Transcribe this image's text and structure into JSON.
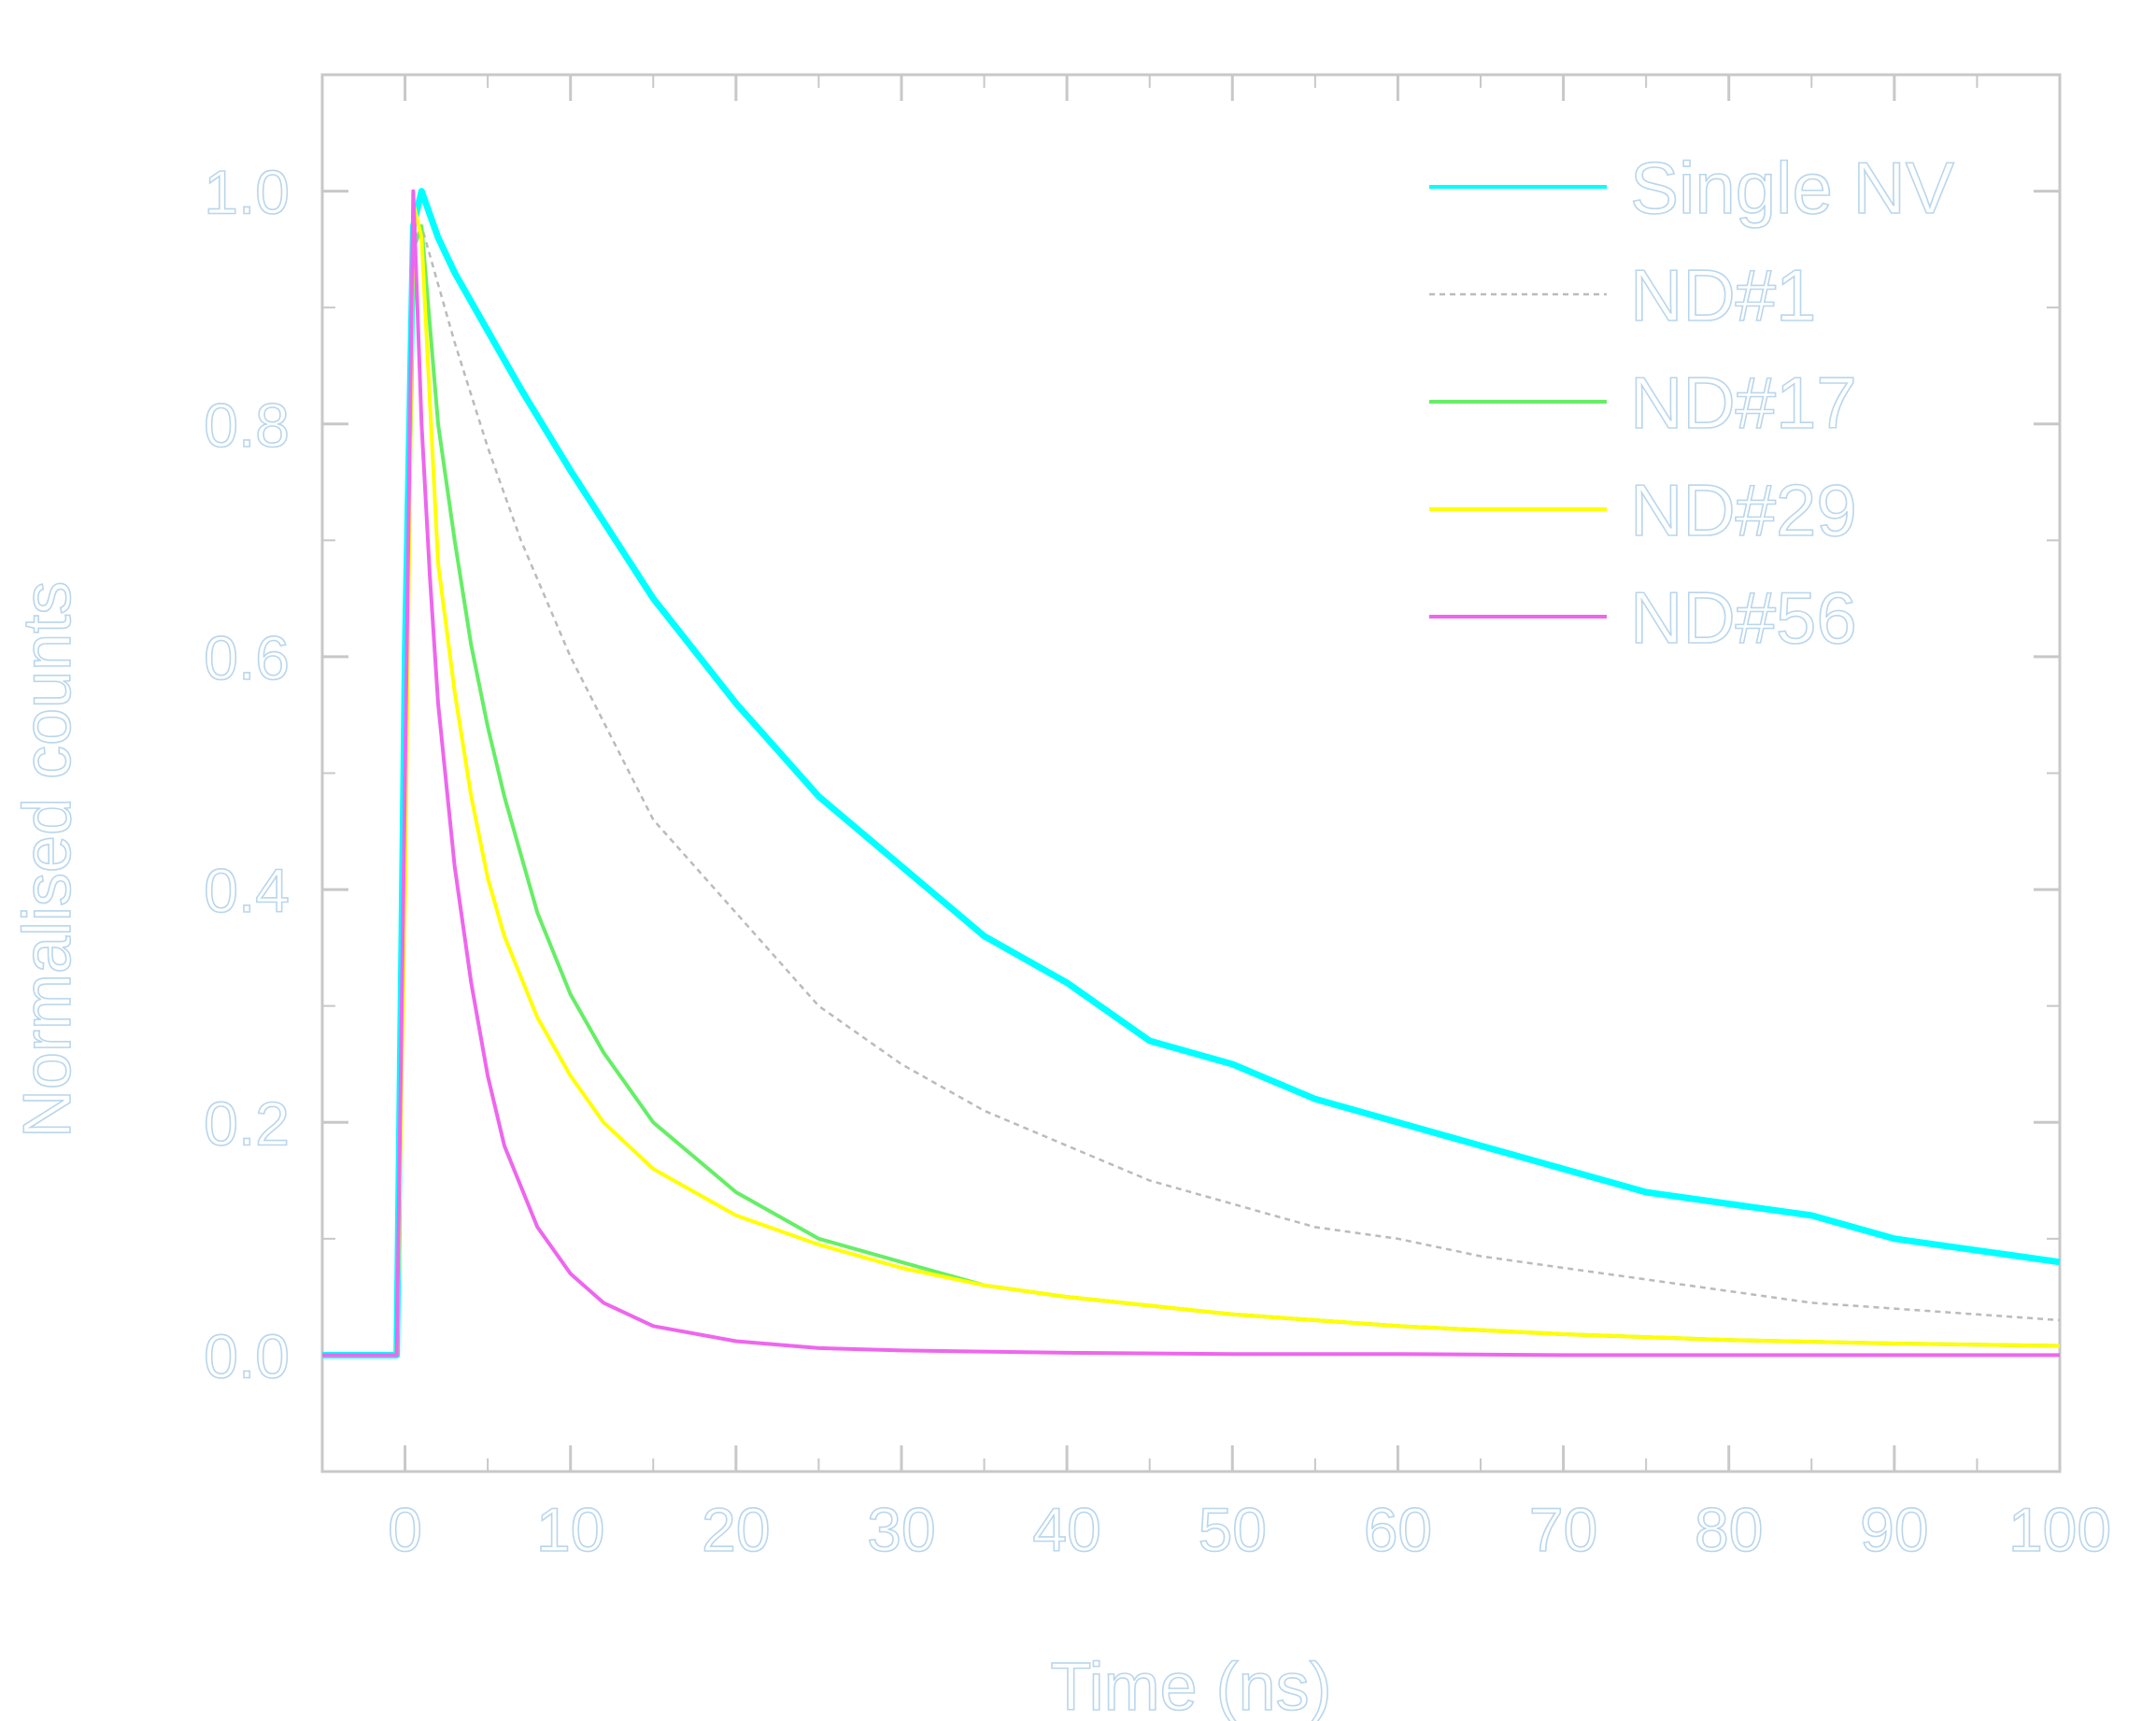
{
  "chart_data": {
    "type": "line",
    "title": "",
    "xlabel": "Time (ns)",
    "ylabel": "Normalised counts",
    "xlim": [
      -5,
      100
    ],
    "ylim": [
      -0.1,
      1.1
    ],
    "xticks": [
      0,
      10,
      20,
      30,
      40,
      50,
      60,
      70,
      80,
      90,
      100
    ],
    "xtick_labels": [
      "0",
      "10",
      "20",
      "30",
      "40",
      "50",
      "60",
      "70",
      "80",
      "90",
      "100"
    ],
    "yticks": [
      0.0,
      0.2,
      0.4,
      0.6,
      0.8,
      1.0
    ],
    "ytick_labels": [
      "0.0",
      "0.2",
      "0.4",
      "0.6",
      "0.8",
      "1.0"
    ],
    "grid": false,
    "legend_position": "top-right",
    "series": [
      {
        "name": "Single NV",
        "color": "#00ffff",
        "x": [
          -5,
          -0.5,
          0,
          0.5,
          1,
          2,
          3,
          5,
          7,
          10,
          15,
          20,
          25,
          30,
          35,
          40,
          45,
          50,
          55,
          60,
          65,
          70,
          75,
          80,
          85,
          90,
          95,
          100
        ],
        "y": [
          0,
          0,
          0.6,
          0.97,
          1.0,
          0.96,
          0.93,
          0.88,
          0.83,
          0.76,
          0.65,
          0.56,
          0.48,
          0.42,
          0.36,
          0.32,
          0.27,
          0.25,
          0.22,
          0.2,
          0.18,
          0.16,
          0.14,
          0.13,
          0.12,
          0.1,
          0.09,
          0.08
        ]
      },
      {
        "name": "ND#1",
        "color": "#bbbbbb",
        "x": [
          -5,
          -0.5,
          0,
          0.5,
          1,
          2,
          3,
          5,
          7,
          10,
          15,
          20,
          25,
          30,
          35,
          40,
          45,
          50,
          55,
          60,
          65,
          70,
          75,
          80,
          85,
          90,
          95,
          100
        ],
        "y": [
          0,
          0,
          0.5,
          0.96,
          0.97,
          0.92,
          0.87,
          0.78,
          0.7,
          0.6,
          0.46,
          0.38,
          0.3,
          0.25,
          0.21,
          0.18,
          0.15,
          0.13,
          0.11,
          0.1,
          0.085,
          0.075,
          0.065,
          0.055,
          0.045,
          0.04,
          0.035,
          0.03
        ]
      },
      {
        "name": "ND#17",
        "color": "#66ee66",
        "x": [
          -5,
          -0.5,
          0,
          0.5,
          1,
          2,
          3,
          4,
          5,
          6,
          8,
          10,
          12,
          15,
          20,
          25,
          30,
          35,
          40,
          50,
          60,
          70,
          80,
          90,
          100
        ],
        "y": [
          0,
          0,
          0.45,
          0.95,
          0.97,
          0.8,
          0.7,
          0.61,
          0.54,
          0.48,
          0.38,
          0.31,
          0.26,
          0.2,
          0.14,
          0.1,
          0.08,
          0.06,
          0.05,
          0.035,
          0.025,
          0.018,
          0.013,
          0.01,
          0.008
        ]
      },
      {
        "name": "ND#29",
        "color": "#ffff00",
        "x": [
          -5,
          -0.5,
          0,
          0.5,
          1,
          2,
          3,
          4,
          5,
          6,
          8,
          10,
          12,
          15,
          20,
          25,
          30,
          35,
          40,
          50,
          60,
          70,
          80,
          90,
          100
        ],
        "y": [
          0,
          0,
          0.4,
          0.99,
          0.96,
          0.68,
          0.57,
          0.48,
          0.41,
          0.36,
          0.29,
          0.24,
          0.2,
          0.16,
          0.12,
          0.095,
          0.075,
          0.06,
          0.05,
          0.035,
          0.025,
          0.018,
          0.013,
          0.01,
          0.008
        ]
      },
      {
        "name": "ND#56",
        "color": "#ee66ee",
        "x": [
          -5,
          -0.5,
          0,
          0.5,
          1,
          1.5,
          2,
          3,
          4,
          5,
          6,
          8,
          10,
          12,
          15,
          20,
          25,
          30,
          40,
          50,
          60,
          70,
          80,
          90,
          100
        ],
        "y": [
          0,
          0,
          0.5,
          1.0,
          0.8,
          0.67,
          0.56,
          0.42,
          0.32,
          0.24,
          0.18,
          0.11,
          0.07,
          0.045,
          0.025,
          0.012,
          0.006,
          0.004,
          0.002,
          0.001,
          0.001,
          0.0,
          0.0,
          0.0,
          0.0
        ]
      }
    ]
  }
}
